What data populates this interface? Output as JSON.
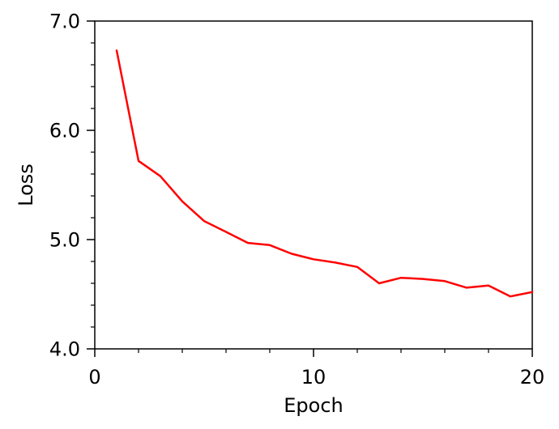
{
  "chart_data": {
    "type": "line",
    "title": "",
    "xlabel": "Epoch",
    "ylabel": "Loss",
    "xlim": [
      0,
      20
    ],
    "ylim": [
      4.0,
      7.0
    ],
    "x_ticks": [
      0,
      10,
      20
    ],
    "x_tick_labels": [
      "0",
      "10",
      "20"
    ],
    "x_minor_ticks": [
      2,
      4,
      6,
      8,
      12,
      14,
      16,
      18
    ],
    "y_ticks": [
      4.0,
      5.0,
      6.0,
      7.0
    ],
    "y_tick_labels": [
      "4.0",
      "5.0",
      "6.0",
      "7.0"
    ],
    "y_minor_ticks": [
      4.2,
      4.4,
      4.6,
      4.8,
      5.2,
      5.4,
      5.6,
      5.8,
      6.2,
      6.4,
      6.6,
      6.8
    ],
    "grid": false,
    "legend": "none",
    "series": [
      {
        "color": "#ff0000",
        "x": [
          1,
          2,
          3,
          4,
          5,
          6,
          7,
          8,
          9,
          10,
          11,
          12,
          13,
          14,
          15,
          16,
          17,
          18,
          19,
          20
        ],
        "y": [
          6.73,
          5.72,
          5.58,
          5.35,
          5.17,
          5.07,
          4.97,
          4.95,
          4.87,
          4.82,
          4.79,
          4.75,
          4.6,
          4.65,
          4.64,
          4.62,
          4.56,
          4.58,
          4.48,
          4.52
        ]
      }
    ]
  }
}
